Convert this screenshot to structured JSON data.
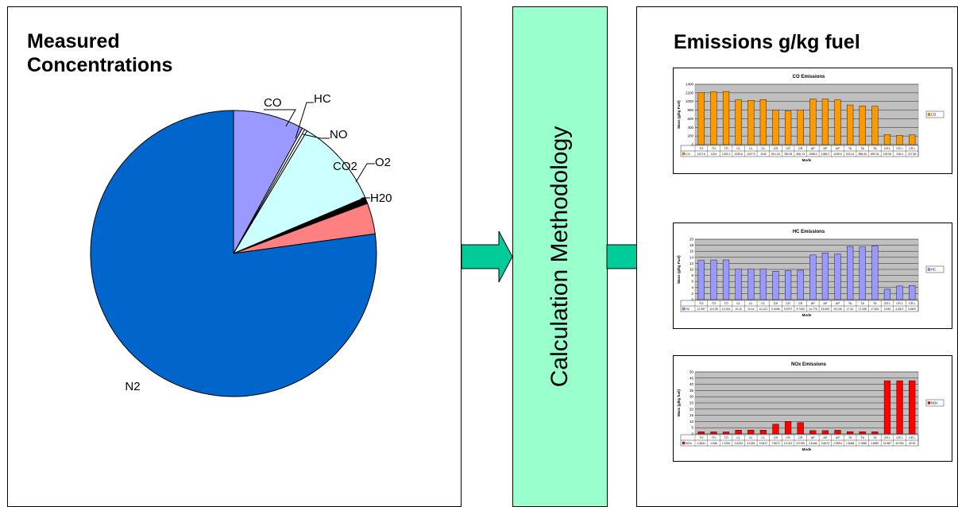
{
  "left_panel": {
    "title_line1": "Measured",
    "title_line2": "Concentrations"
  },
  "middle": {
    "label": "Calculation Methodology"
  },
  "right_panel": {
    "title": "Emissions g/kg fuel"
  },
  "colors": {
    "calc_box": "#99ffcc",
    "arrow": "#00cc99",
    "orange_bar": "#ff9900",
    "blue_bar": "#9999ff",
    "red_bar": "#ff0000",
    "chart_plot_bg": "#c0c0c0"
  },
  "chart_data": [
    {
      "type": "pie",
      "labels": [
        "CO",
        "HC",
        "NO",
        "CO2",
        "O2",
        "H20",
        "N2"
      ],
      "values": [
        8.0,
        0.3,
        0.3,
        10.0,
        0.7,
        3.5,
        77.2
      ],
      "colors": [
        "#9999ff",
        "#ffffff",
        "#ffffff",
        "#ccffff",
        "#000000",
        "#ff8080",
        "#0066cc"
      ]
    },
    {
      "type": "bar",
      "title": "CO Emissions",
      "xlabel": "Mode",
      "ylabel": "Mass (g/kg Fuel)",
      "ylim": [
        0,
        1400
      ],
      "yticks": [
        0,
        200,
        400,
        600,
        800,
        1000,
        1200,
        1400
      ],
      "categories": [
        "TO",
        "TO",
        "TO",
        "CL",
        "CL",
        "CL",
        "CR",
        "CR",
        "CR",
        "AP",
        "AP",
        "AP",
        "TA",
        "TA",
        "TA",
        "CR L",
        "CR L",
        "CR L"
      ],
      "series": [
        {
          "name": "CO",
          "values": [
            1207.6,
            1224,
            1232.2,
            1039.6,
            1027.9,
            1045,
            801.15,
            780.35,
            806.13,
            1058,
            1058.2,
            1038.5,
            920.14,
            898.46,
            890.31,
            233.95,
            216.4,
            227.83
          ]
        }
      ],
      "value_labels": [
        "1207.6",
        "1224",
        "1232.2",
        "1039.6",
        "1027.9",
        "1045",
        "801.15",
        "780.35",
        "806.13",
        "1058.0",
        "1058.2",
        "1038.5",
        "920.14",
        "898.46",
        "890.31",
        "233.95",
        "216.4",
        "227.83"
      ],
      "color": "#ff9900",
      "legend": "right"
    },
    {
      "type": "bar",
      "title": "HC Emissions",
      "xlabel": "Mode",
      "ylabel": "Mass (g/kg Fuel)",
      "ylim": [
        0,
        20
      ],
      "yticks": [
        0,
        2,
        4,
        6,
        8,
        10,
        12,
        14,
        16,
        18,
        20
      ],
      "categories": [
        "TO",
        "TO",
        "TO",
        "CL",
        "CL",
        "CL",
        "CR",
        "CR",
        "CR",
        "AP",
        "AP",
        "AP",
        "TA",
        "TA",
        "TA",
        "CR L",
        "CR L",
        "CR L"
      ],
      "series": [
        {
          "name": "HC",
          "values": [
            12.957,
            13.139,
            13.154,
            10.12,
            10.14,
            10.121,
            9.4066,
            9.5797,
            9.7432,
            14.778,
            15.452,
            15.106,
            17.61,
            17.438,
            17.832,
            3.435,
            4.4917,
            4.6637
          ]
        }
      ],
      "value_labels": [
        "12.957",
        "13.139",
        "13.154",
        "10.12",
        "10.14",
        "10.121",
        "9.4066",
        "9.5797",
        "9.7432",
        "14.778",
        "15.452",
        "15.106",
        "17.61",
        "17.438",
        "17.832",
        "3.435",
        "4.4917",
        "4.6637"
      ],
      "color": "#9999ff",
      "legend": "right"
    },
    {
      "type": "bar",
      "title": "NOx Emissions",
      "xlabel": "Mode",
      "ylabel": "Mass (g/kg fuel)",
      "ylim": [
        0,
        50
      ],
      "yticks": [
        0,
        5,
        10,
        15,
        20,
        25,
        30,
        35,
        40,
        45,
        50
      ],
      "categories": [
        "TO",
        "TO",
        "TO",
        "CL",
        "CL",
        "CL",
        "CR",
        "CR",
        "CR",
        "AP",
        "AP",
        "AP",
        "TA",
        "TA",
        "TA",
        "CR L",
        "CR L",
        "CR L"
      ],
      "series": [
        {
          "name": "NOx",
          "values": [
            1.6541,
            1.636,
            1.576,
            3.0254,
            3.1254,
            3.0517,
            7.8672,
            10.021,
            9.0769,
            2.6446,
            2.6672,
            2.9694,
            1.8268,
            1.7688,
            1.6887,
            42.887,
            42.9,
            42.92
          ]
        }
      ],
      "value_labels": [
        "1.6541",
        "1.636",
        "1.5760",
        "3.0254",
        "3.1254",
        "3.0517",
        "7.8672",
        "10.021",
        "9.0769",
        "2.6446",
        "2.6672",
        "2.9694",
        "1.8268",
        "1.7688",
        "1.6887",
        "42.887",
        "42.900",
        "42.92"
      ],
      "color": "#ff0000",
      "legend": "right"
    }
  ]
}
